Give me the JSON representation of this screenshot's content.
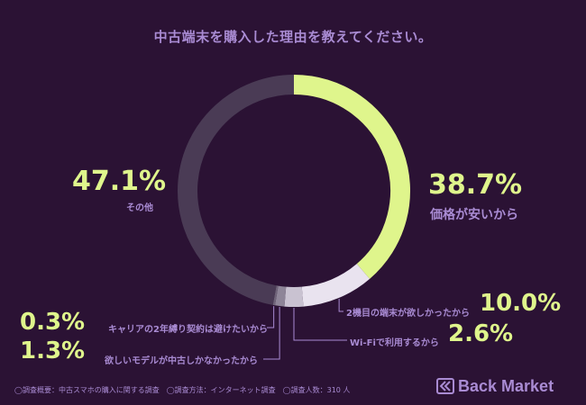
{
  "colors": {
    "background": "#2b1234",
    "accent_green": "#dff58c",
    "label_purple": "#a98bd3",
    "segment_white": "#e9e3ef",
    "segment_light_gray": "#c9c2d1",
    "segment_mid_gray": "#8e8598",
    "segment_dark": "#4a3b55"
  },
  "chart_data": {
    "type": "pie",
    "title": "中古端末を購入した理由を教えてください。",
    "slices": [
      {
        "label": "価格が安いから",
        "value": 38.7,
        "value_label": "38.7%",
        "color": "#dff58c"
      },
      {
        "label": "2機目の端末が欲しかったから",
        "value": 10.0,
        "value_label": "10.0%",
        "color": "#e9e3ef"
      },
      {
        "label": "Wi-Fiで利用するから",
        "value": 2.6,
        "value_label": "2.6%",
        "color": "#c9c2d1"
      },
      {
        "label": "欲しいモデルが中古しかなかったから",
        "value": 1.3,
        "value_label": "1.3%",
        "color": "#8e8598"
      },
      {
        "label": "キャリアの2年縛り契約は避けたいから",
        "value": 0.3,
        "value_label": "0.3%",
        "color": "#6f6479"
      },
      {
        "label": "その他",
        "value": 47.1,
        "value_label": "47.1%",
        "color": "#4a3b55"
      }
    ]
  },
  "footnote": "◯調査概要：中古スマホの購入に関する調査　◯調査方法：インターネット調査　◯調査人数：310 人",
  "logo": {
    "text": "Back Market",
    "icon": "back-market-chevron-icon"
  }
}
